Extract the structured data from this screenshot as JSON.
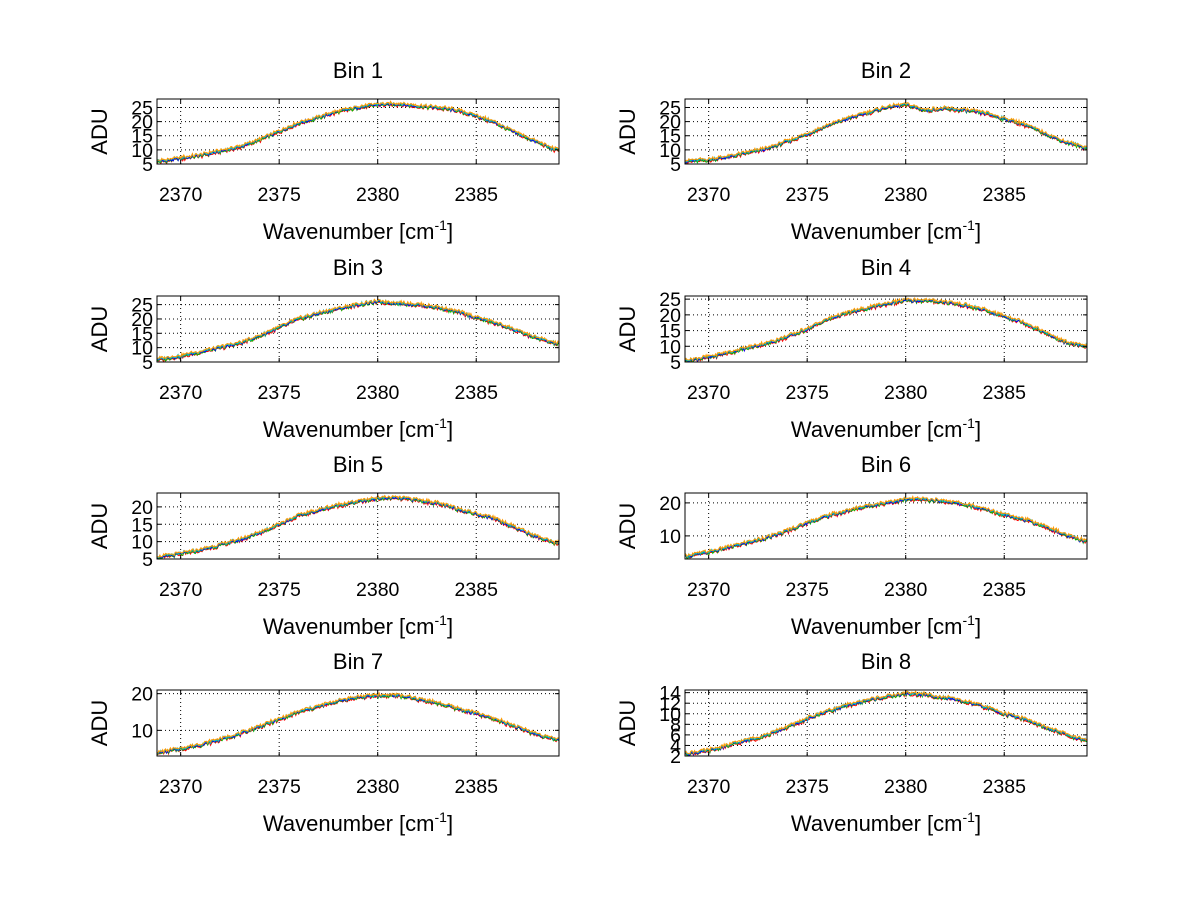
{
  "figure": {
    "background": "#ffffff",
    "series_colors": [
      "#ff0000",
      "#00bf00",
      "#0000ff",
      "#00bfbf",
      "#ff9900"
    ]
  },
  "chart_data": [
    {
      "type": "line",
      "title": "Bin 1",
      "xlabel": "Wavenumber [cm",
      "xlabel_sup": "-1",
      "xlabel_end": "]",
      "ylabel": "ADU",
      "xlim": [
        2368.8,
        2389.2
      ],
      "ylim": [
        5,
        28
      ],
      "xticks": [
        2370,
        2375,
        2380,
        2385
      ],
      "yticks": [
        5,
        10,
        15,
        20,
        25
      ],
      "grid": true,
      "x": [
        2369,
        2370,
        2371,
        2372,
        2373,
        2374,
        2375,
        2376,
        2377,
        2378,
        2379,
        2380,
        2381,
        2382,
        2383,
        2384,
        2385,
        2386,
        2387,
        2388,
        2389
      ],
      "series": [
        {
          "values": [
            6,
            7,
            8,
            9.5,
            11,
            13.5,
            16.5,
            19.5,
            21.5,
            23.5,
            25,
            26,
            26.2,
            25.5,
            25,
            24,
            22,
            19.5,
            16,
            13,
            10
          ]
        }
      ]
    },
    {
      "type": "line",
      "title": "Bin 2",
      "xlabel": "Wavenumber [cm",
      "xlabel_sup": "-1",
      "xlabel_end": "]",
      "ylabel": "ADU",
      "xlim": [
        2368.8,
        2389.2
      ],
      "ylim": [
        5,
        28
      ],
      "xticks": [
        2370,
        2375,
        2380,
        2385
      ],
      "yticks": [
        5,
        10,
        15,
        20,
        25
      ],
      "grid": true,
      "x": [
        2369,
        2370,
        2371,
        2372,
        2373,
        2374,
        2375,
        2376,
        2377,
        2378,
        2379,
        2380,
        2381,
        2382,
        2383,
        2384,
        2385,
        2386,
        2387,
        2388,
        2389
      ],
      "series": [
        {
          "values": [
            6,
            6.5,
            7.5,
            9,
            10.5,
            13,
            15.5,
            18.5,
            21,
            23,
            25,
            26,
            24,
            24.5,
            24,
            23,
            21,
            19,
            16,
            13,
            11
          ]
        }
      ]
    },
    {
      "type": "line",
      "title": "Bin 3",
      "xlabel": "Wavenumber [cm",
      "xlabel_sup": "-1",
      "xlabel_end": "]",
      "ylabel": "ADU",
      "xlim": [
        2368.8,
        2389.2
      ],
      "ylim": [
        5,
        28
      ],
      "xticks": [
        2370,
        2375,
        2380,
        2385
      ],
      "yticks": [
        5,
        10,
        15,
        20,
        25
      ],
      "grid": true,
      "x": [
        2369,
        2370,
        2371,
        2372,
        2373,
        2374,
        2375,
        2376,
        2377,
        2378,
        2379,
        2380,
        2381,
        2382,
        2383,
        2384,
        2385,
        2386,
        2387,
        2388,
        2389
      ],
      "series": [
        {
          "values": [
            6,
            7,
            8.5,
            10,
            11.5,
            14,
            17,
            20,
            22,
            23.5,
            25,
            26,
            25.5,
            25,
            24,
            22.5,
            20.5,
            18.5,
            16,
            13.5,
            11.5
          ]
        }
      ]
    },
    {
      "type": "line",
      "title": "Bin 4",
      "xlabel": "Wavenumber [cm",
      "xlabel_sup": "-1",
      "xlabel_end": "]",
      "ylabel": "ADU",
      "xlim": [
        2368.8,
        2389.2
      ],
      "ylim": [
        5,
        26
      ],
      "xticks": [
        2370,
        2375,
        2380,
        2385
      ],
      "yticks": [
        5,
        10,
        15,
        20,
        25
      ],
      "grid": true,
      "x": [
        2369,
        2370,
        2371,
        2372,
        2373,
        2374,
        2375,
        2376,
        2377,
        2378,
        2379,
        2380,
        2381,
        2382,
        2383,
        2384,
        2385,
        2386,
        2387,
        2388,
        2389
      ],
      "series": [
        {
          "values": [
            5.5,
            6.5,
            8,
            9.5,
            11,
            13,
            15.5,
            18.5,
            20.5,
            22,
            23.5,
            24.5,
            24.5,
            24,
            23,
            21.5,
            19.5,
            17.5,
            14.5,
            11.5,
            10
          ]
        }
      ]
    },
    {
      "type": "line",
      "title": "Bin 5",
      "xlabel": "Wavenumber [cm",
      "xlabel_sup": "-1",
      "xlabel_end": "]",
      "ylabel": "ADU",
      "xlim": [
        2368.8,
        2389.2
      ],
      "ylim": [
        5,
        24
      ],
      "xticks": [
        2370,
        2375,
        2380,
        2385
      ],
      "yticks": [
        5,
        10,
        15,
        20
      ],
      "grid": true,
      "x": [
        2369,
        2370,
        2371,
        2372,
        2373,
        2374,
        2375,
        2376,
        2377,
        2378,
        2379,
        2380,
        2381,
        2382,
        2383,
        2384,
        2385,
        2386,
        2387,
        2388,
        2389
      ],
      "series": [
        {
          "values": [
            5.5,
            6.5,
            7.5,
            9,
            10.5,
            12.5,
            15,
            17.5,
            19,
            20.5,
            21.5,
            22.5,
            22.5,
            22,
            21,
            19.5,
            18,
            16.5,
            14,
            11.5,
            9.5
          ]
        }
      ]
    },
    {
      "type": "line",
      "title": "Bin 6",
      "xlabel": "Wavenumber [cm",
      "xlabel_sup": "-1",
      "xlabel_end": "]",
      "ylabel": "ADU",
      "xlim": [
        2368.8,
        2389.2
      ],
      "ylim": [
        3,
        23
      ],
      "xticks": [
        2370,
        2375,
        2380,
        2385
      ],
      "yticks": [
        10,
        20
      ],
      "grid": true,
      "x": [
        2369,
        2370,
        2371,
        2372,
        2373,
        2374,
        2375,
        2376,
        2377,
        2378,
        2379,
        2380,
        2381,
        2382,
        2383,
        2384,
        2385,
        2386,
        2387,
        2388,
        2389
      ],
      "series": [
        {
          "values": [
            4,
            5,
            6.5,
            8,
            9.5,
            11.5,
            14,
            16,
            17.5,
            19,
            20,
            21,
            21,
            20.5,
            19.5,
            18,
            16.5,
            15,
            13,
            10.5,
            8.5
          ]
        }
      ]
    },
    {
      "type": "line",
      "title": "Bin 7",
      "xlabel": "Wavenumber [cm",
      "xlabel_sup": "-1",
      "xlabel_end": "]",
      "ylabel": "ADU",
      "xlim": [
        2368.8,
        2389.2
      ],
      "ylim": [
        3,
        21
      ],
      "xticks": [
        2370,
        2375,
        2380,
        2385
      ],
      "yticks": [
        10,
        20
      ],
      "grid": true,
      "x": [
        2369,
        2370,
        2371,
        2372,
        2373,
        2374,
        2375,
        2376,
        2377,
        2378,
        2379,
        2380,
        2381,
        2382,
        2383,
        2384,
        2385,
        2386,
        2387,
        2388,
        2389
      ],
      "series": [
        {
          "values": [
            4,
            5,
            6,
            7.5,
            9,
            11,
            13,
            15,
            16.5,
            18,
            19,
            19.5,
            19.5,
            18.5,
            17.5,
            16,
            14.5,
            13,
            11,
            9,
            7.5
          ]
        }
      ]
    },
    {
      "type": "line",
      "title": "Bin 8",
      "xlabel": "Wavenumber [cm",
      "xlabel_sup": "-1",
      "xlabel_end": "]",
      "ylabel": "ADU",
      "xlim": [
        2368.8,
        2389.2
      ],
      "ylim": [
        2,
        14.5
      ],
      "xticks": [
        2370,
        2375,
        2380,
        2385
      ],
      "yticks": [
        2,
        4,
        6,
        8,
        10,
        12,
        14
      ],
      "grid": true,
      "x": [
        2369,
        2370,
        2371,
        2372,
        2373,
        2374,
        2375,
        2376,
        2377,
        2378,
        2379,
        2380,
        2381,
        2382,
        2383,
        2384,
        2385,
        2386,
        2387,
        2388,
        2389
      ],
      "series": [
        {
          "values": [
            2.5,
            3,
            4,
            5,
            6,
            7.5,
            9,
            10.5,
            11.5,
            12.5,
            13.2,
            13.8,
            13.6,
            13,
            12.3,
            11.3,
            10,
            9,
            7.5,
            6.2,
            5
          ]
        }
      ]
    }
  ]
}
